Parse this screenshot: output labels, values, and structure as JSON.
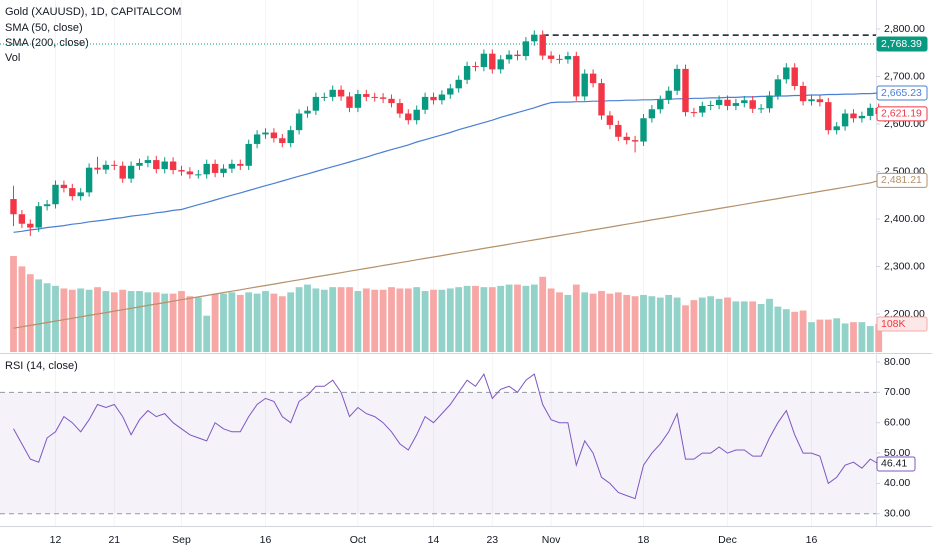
{
  "chart_data": [
    {
      "type": "candlestick",
      "title": "Gold (XAUUSD), 1D, CAPITALCOM",
      "categories": [
        null,
        null,
        null,
        null,
        null,
        "12",
        null,
        null,
        null,
        null,
        null,
        null,
        "21",
        null,
        null,
        null,
        null,
        null,
        null,
        null,
        "Sep",
        null,
        null,
        null,
        null,
        null,
        null,
        null,
        null,
        null,
        "16",
        null,
        null,
        null,
        null,
        null,
        null,
        null,
        null,
        null,
        null,
        "Oct",
        null,
        null,
        null,
        null,
        null,
        null,
        null,
        null,
        "14",
        null,
        null,
        null,
        null,
        null,
        null,
        "23",
        null,
        null,
        null,
        null,
        null,
        null,
        "Nov",
        null,
        null,
        null,
        null,
        null,
        null,
        null,
        null,
        null,
        null,
        "18",
        null,
        null,
        null,
        null,
        null,
        null,
        null,
        null,
        null,
        "Dec",
        null,
        null,
        null,
        null,
        null,
        null,
        null,
        null,
        null,
        "16",
        null,
        null,
        null,
        null,
        null,
        null,
        null,
        null
      ],
      "open": [
        2442,
        2410,
        2390,
        2382,
        2427,
        2431,
        2472,
        2465,
        2448,
        2456,
        2508,
        2504,
        2514,
        2512,
        2485,
        2512,
        2518,
        2524,
        2505,
        2521,
        2503,
        2500,
        2494,
        2494,
        2516,
        2497,
        2506,
        2516,
        2512,
        2558,
        2578,
        2582,
        2570,
        2560,
        2587,
        2622,
        2628,
        2657,
        2657,
        2672,
        2658,
        2634,
        2663,
        2657,
        2656,
        2653,
        2644,
        2622,
        2608,
        2630,
        2657,
        2650,
        2662,
        2675,
        2693,
        2722,
        2720,
        2748,
        2715,
        2736,
        2746,
        2743,
        2774,
        2788,
        2744,
        2737,
        2736,
        2743,
        2658,
        2706,
        2686,
        2618,
        2598,
        2573,
        2566,
        2563,
        2612,
        2631,
        2651,
        2670,
        2716,
        2625,
        2624,
        2638,
        2640,
        2651,
        2638,
        2644,
        2650,
        2632,
        2633,
        2660,
        2694,
        2719,
        2680,
        2648,
        2652,
        2646,
        2587,
        2595,
        2622,
        2612,
        2617,
        2634
      ],
      "high": [
        2470,
        2419,
        2399,
        2436,
        2440,
        2481,
        2481,
        2474,
        2465,
        2517,
        2531,
        2523,
        2523,
        2521,
        2521,
        2527,
        2533,
        2533,
        2530,
        2530,
        2512,
        2509,
        2503,
        2525,
        2525,
        2515,
        2525,
        2525,
        2567,
        2587,
        2591,
        2591,
        2579,
        2596,
        2631,
        2637,
        2666,
        2666,
        2681,
        2681,
        2667,
        2672,
        2672,
        2666,
        2665,
        2662,
        2653,
        2631,
        2639,
        2666,
        2666,
        2671,
        2684,
        2702,
        2731,
        2731,
        2757,
        2757,
        2745,
        2755,
        2755,
        2783,
        2797,
        2797,
        2753,
        2746,
        2752,
        2752,
        2715,
        2715,
        2695,
        2627,
        2607,
        2582,
        2575,
        2621,
        2640,
        2660,
        2679,
        2725,
        2725,
        2634,
        2647,
        2649,
        2660,
        2660,
        2653,
        2659,
        2659,
        2642,
        2669,
        2703,
        2728,
        2728,
        2689,
        2661,
        2661,
        2655,
        2604,
        2631,
        2631,
        2626,
        2643,
        2643
      ],
      "low": [
        2385,
        2381,
        2364,
        2373,
        2418,
        2422,
        2456,
        2439,
        2439,
        2447,
        2495,
        2495,
        2503,
        2476,
        2476,
        2503,
        2509,
        2496,
        2496,
        2494,
        2491,
        2485,
        2485,
        2485,
        2488,
        2488,
        2497,
        2503,
        2503,
        2549,
        2569,
        2561,
        2551,
        2551,
        2578,
        2613,
        2619,
        2648,
        2648,
        2649,
        2625,
        2625,
        2648,
        2647,
        2644,
        2635,
        2613,
        2599,
        2599,
        2621,
        2641,
        2641,
        2653,
        2666,
        2684,
        2711,
        2711,
        2706,
        2706,
        2727,
        2734,
        2734,
        2765,
        2735,
        2728,
        2727,
        2727,
        2649,
        2649,
        2677,
        2609,
        2589,
        2564,
        2557,
        2540,
        2554,
        2603,
        2622,
        2642,
        2661,
        2616,
        2615,
        2615,
        2629,
        2631,
        2629,
        2629,
        2635,
        2623,
        2623,
        2624,
        2651,
        2685,
        2671,
        2639,
        2639,
        2637,
        2578,
        2578,
        2586,
        2603,
        2603,
        2608,
        2612
      ],
      "close": [
        2410,
        2390,
        2382,
        2427,
        2431,
        2472,
        2465,
        2448,
        2456,
        2508,
        2504,
        2514,
        2512,
        2485,
        2512,
        2518,
        2524,
        2505,
        2521,
        2503,
        2500,
        2494,
        2494,
        2516,
        2497,
        2506,
        2516,
        2512,
        2558,
        2578,
        2582,
        2570,
        2560,
        2587,
        2622,
        2628,
        2657,
        2657,
        2672,
        2658,
        2634,
        2663,
        2657,
        2656,
        2653,
        2644,
        2622,
        2608,
        2630,
        2657,
        2650,
        2662,
        2675,
        2693,
        2722,
        2720,
        2748,
        2715,
        2736,
        2746,
        2743,
        2774,
        2788,
        2744,
        2737,
        2736,
        2743,
        2658,
        2706,
        2686,
        2618,
        2598,
        2573,
        2566,
        2563,
        2612,
        2631,
        2651,
        2670,
        2716,
        2625,
        2624,
        2638,
        2640,
        2651,
        2638,
        2644,
        2650,
        2632,
        2633,
        2660,
        2694,
        2719,
        2680,
        2648,
        2652,
        2646,
        2587,
        2595,
        2622,
        2612,
        2617,
        2634,
        2621.19
      ],
      "last_label": "2,621.19",
      "up_color": "#089981",
      "down_color": "#f23645",
      "ylim": [
        2120,
        2861
      ],
      "yticks": [
        {
          "value": 2200,
          "label": "2,200.00"
        },
        {
          "value": 2300,
          "label": "2,300.00"
        },
        {
          "value": 2400,
          "label": "2,400.00"
        },
        {
          "value": 2500,
          "label": "2,500.00"
        },
        {
          "value": 2600,
          "label": "2,600.00"
        },
        {
          "value": 2700,
          "label": "2,700.00"
        },
        {
          "value": 2800,
          "label": "2,800.00"
        }
      ],
      "overlays": [
        {
          "name": "SMA (50, close)",
          "color": "#4a7fd4",
          "last_label": "2,665.23",
          "values": [
            2372,
            2374,
            2377,
            2379,
            2382,
            2384,
            2386,
            2389,
            2391,
            2394,
            2396,
            2398,
            2401,
            2403,
            2406,
            2408,
            2410,
            2413,
            2415,
            2418,
            2420,
            2425,
            2430,
            2435,
            2440,
            2445,
            2450,
            2455,
            2460,
            2465,
            2470,
            2475,
            2480,
            2485,
            2490,
            2495,
            2500,
            2505,
            2510,
            2515,
            2520,
            2525,
            2530,
            2536,
            2541,
            2546,
            2551,
            2556,
            2562,
            2567,
            2572,
            2577,
            2582,
            2588,
            2593,
            2598,
            2603,
            2608,
            2614,
            2619,
            2624,
            2629,
            2634,
            2640,
            2645,
            2646,
            2646,
            2647,
            2647,
            2648,
            2648,
            2649,
            2649,
            2650,
            2650,
            2651,
            2651,
            2652,
            2652,
            2653,
            2653,
            2654,
            2654,
            2655,
            2655,
            2656,
            2656,
            2657,
            2657,
            2658,
            2658,
            2659,
            2659,
            2660,
            2660,
            2661,
            2661,
            2662,
            2662,
            2663,
            2663,
            2664,
            2664,
            2665.23
          ]
        },
        {
          "name": "SMA (200, close)",
          "color": "#b5916b",
          "last_label": "2,481.21",
          "values": [
            2170,
            2173,
            2176,
            2179,
            2182,
            2185,
            2188,
            2191,
            2194,
            2197,
            2200,
            2203,
            2206,
            2209,
            2212,
            2215,
            2218,
            2221,
            2224,
            2227,
            2230,
            2233,
            2236,
            2239,
            2242,
            2245,
            2248,
            2251,
            2254,
            2257,
            2260,
            2263,
            2266,
            2269,
            2272,
            2275,
            2278,
            2281,
            2284,
            2287,
            2290,
            2293,
            2296,
            2299,
            2302,
            2305,
            2308,
            2311,
            2314,
            2317,
            2320,
            2323,
            2326,
            2329,
            2332,
            2335,
            2338,
            2341,
            2344,
            2347,
            2350,
            2353,
            2356,
            2359,
            2362,
            2365,
            2368,
            2371,
            2374,
            2377,
            2380,
            2383,
            2386,
            2389,
            2392,
            2395,
            2398,
            2401,
            2404,
            2407,
            2410,
            2413,
            2416,
            2419,
            2422,
            2425,
            2428,
            2431,
            2434,
            2437,
            2440,
            2443,
            2446,
            2449,
            2452,
            2455,
            2458,
            2461,
            2464,
            2467,
            2470,
            2473,
            2476,
            2481.21
          ]
        }
      ],
      "price_lines": [
        {
          "value": 2768.39,
          "label": "2,768.39",
          "color": "#089981"
        }
      ],
      "levels": [
        {
          "value": 2787,
          "from": 63,
          "color": "#131722"
        }
      ],
      "volume": {
        "name": "Vol",
        "up_color": "#92d2c9",
        "down_color": "#f7a8a6",
        "last_label": "108K",
        "ylim": [
          0,
          1600000
        ],
        "values": [
          370000,
          330000,
          300000,
          280000,
          265000,
          255000,
          245000,
          240000,
          245000,
          240000,
          250000,
          235000,
          230000,
          240000,
          235000,
          235000,
          230000,
          230000,
          225000,
          225000,
          235000,
          215000,
          210000,
          140000,
          225000,
          225000,
          230000,
          220000,
          230000,
          225000,
          235000,
          225000,
          215000,
          230000,
          250000,
          260000,
          245000,
          240000,
          250000,
          250000,
          250000,
          235000,
          245000,
          240000,
          240000,
          250000,
          245000,
          245000,
          250000,
          235000,
          240000,
          240000,
          245000,
          250000,
          255000,
          255000,
          250000,
          250000,
          255000,
          260000,
          260000,
          255000,
          260000,
          290000,
          245000,
          230000,
          220000,
          260000,
          230000,
          225000,
          235000,
          225000,
          230000,
          220000,
          215000,
          220000,
          215000,
          210000,
          220000,
          210000,
          180000,
          200000,
          210000,
          215000,
          205000,
          210000,
          195000,
          195000,
          195000,
          185000,
          205000,
          175000,
          165000,
          155000,
          160000,
          115000,
          125000,
          125000,
          130000,
          110000,
          115000,
          115000,
          100000,
          108000
        ]
      }
    },
    {
      "type": "line",
      "title": "RSI (14, close)",
      "series": [
        {
          "color": "#7e57c2",
          "last_label": "46.41",
          "values": [
            58,
            53,
            48,
            47,
            55,
            57,
            62,
            60,
            57,
            61,
            66,
            65,
            66,
            62,
            56,
            61,
            64,
            62,
            63,
            60,
            58,
            56,
            55,
            54,
            60,
            58,
            57,
            57,
            62,
            66,
            68,
            67,
            62,
            60,
            67,
            69,
            72,
            72,
            74,
            70,
            62,
            65,
            63,
            62,
            60,
            57,
            53,
            51,
            56,
            62,
            60,
            63,
            66,
            70,
            74,
            72,
            76,
            68,
            71,
            72,
            70,
            74,
            76,
            66,
            61,
            60,
            60,
            46,
            54,
            50,
            42,
            40,
            37,
            36,
            35,
            46,
            50,
            53,
            57,
            63,
            48,
            48,
            50,
            50,
            52,
            50,
            51,
            51,
            49,
            49,
            55,
            60,
            64,
            56,
            50,
            50,
            49,
            40,
            42,
            46,
            47,
            45,
            48,
            46.41
          ]
        }
      ],
      "band": [
        30,
        70
      ],
      "band_color": "#7e57c2",
      "ylim": [
        26.3,
        82.3
      ],
      "yticks": [
        {
          "value": 30,
          "label": "30.00"
        },
        {
          "value": 40,
          "label": "40.00"
        },
        {
          "value": 50,
          "label": "50.00"
        },
        {
          "value": 60,
          "label": "60.00"
        },
        {
          "value": 70,
          "label": "70.00"
        },
        {
          "value": 80,
          "label": "80.00"
        }
      ]
    }
  ]
}
